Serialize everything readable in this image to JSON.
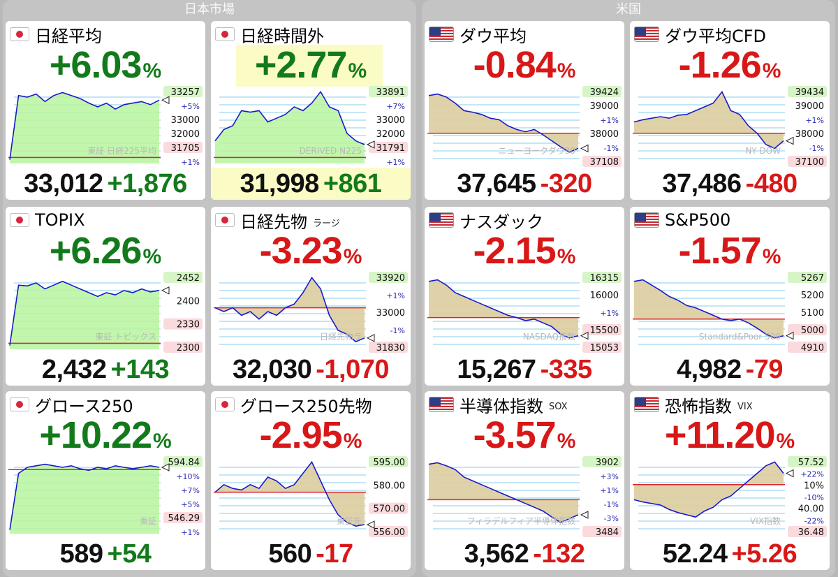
{
  "sections": {
    "japan": "日本市場",
    "us": "米国"
  },
  "colors": {
    "up": "#137a1b",
    "down": "#d81818",
    "fill": "#b9f59f",
    "line": "#1a1ac8",
    "grid": "#9fd8f0",
    "baseline": "#e0242b"
  },
  "cards": [
    {
      "id": "nikkei",
      "flag": "jp",
      "name": "日経平均",
      "sub": "",
      "pct": "+6.03",
      "unit": "%",
      "dir": "up",
      "value": "33,012",
      "change": "+1,876",
      "watermark": "東証 日経225平均",
      "tags": [
        "33257",
        "+5%",
        "33000",
        "32000",
        "31705",
        "+1%"
      ]
    },
    {
      "id": "nikkei-afterhours",
      "flag": "jp",
      "name": "日経時間外",
      "sub": "",
      "pct": "+2.77",
      "unit": "%",
      "dir": "up",
      "value": "31,998",
      "change": "+861",
      "watermark": "DERIVED N225",
      "tags": [
        "33891",
        "+7%",
        "33000",
        "32000",
        "31791",
        "+1%"
      ]
    },
    {
      "id": "dow",
      "flag": "us",
      "name": "ダウ平均",
      "sub": "",
      "pct": "-0.84",
      "unit": "%",
      "dir": "down",
      "value": "37,645",
      "change": "-320",
      "watermark": "ニューヨークダウ30",
      "tags": [
        "39424",
        "39000",
        "+1%",
        "38000",
        "-1%",
        "37108"
      ]
    },
    {
      "id": "dow-cfd",
      "flag": "us",
      "name": "ダウ平均CFD",
      "sub": "",
      "pct": "-1.26",
      "unit": "%",
      "dir": "down",
      "value": "37,486",
      "change": "-480",
      "watermark": "NY DOW",
      "tags": [
        "39434",
        "39000",
        "+1%",
        "38000",
        "-1%",
        "37100"
      ]
    },
    {
      "id": "topix",
      "flag": "jp",
      "name": "TOPIX",
      "sub": "",
      "pct": "+6.26",
      "unit": "%",
      "dir": "up",
      "value": "2,432",
      "change": "+143",
      "watermark": "東証 トピックス",
      "tags": [
        "2452",
        "2400",
        "2330",
        "2300"
      ]
    },
    {
      "id": "nikkei-futures",
      "flag": "jp",
      "name": "日経先物",
      "sub": "ラージ",
      "pct": "-3.23",
      "unit": "%",
      "dir": "down",
      "value": "32,030",
      "change": "-1,070",
      "watermark": "日経先物ラ",
      "tags": [
        "33920",
        "+1%",
        "33000",
        "-1%",
        "31830"
      ]
    },
    {
      "id": "nasdaq",
      "flag": "us",
      "name": "ナスダック",
      "sub": "",
      "pct": "-2.15",
      "unit": "%",
      "dir": "down",
      "value": "15,267",
      "change": "-335",
      "watermark": "NASDAQ指数",
      "tags": [
        "16315",
        "16000",
        "+1%",
        "15500",
        "15053"
      ]
    },
    {
      "id": "sp500",
      "flag": "us",
      "name": "S&P500",
      "sub": "",
      "pct": "-1.57",
      "unit": "%",
      "dir": "down",
      "value": "4,982",
      "change": "-79",
      "watermark": "Standard&Poor 500",
      "tags": [
        "5267",
        "5200",
        "5100",
        "5000",
        "4910"
      ]
    },
    {
      "id": "growth250",
      "flag": "jp",
      "name": "グロース250",
      "sub": "",
      "pct": "+10.22",
      "unit": "%",
      "dir": "up",
      "value": "589",
      "change": "+54",
      "watermark": "東証",
      "tags": [
        "594.84",
        "+10%",
        "+7%",
        "+5%",
        "546.29",
        "+1%"
      ]
    },
    {
      "id": "growth250-futures",
      "flag": "jp",
      "name": "グロース250先物",
      "sub": "",
      "pct": "-2.95",
      "unit": "%",
      "dir": "down",
      "value": "560",
      "change": "-17",
      "watermark": "東証先",
      "tags": [
        "595.00",
        "580.00",
        "570.00",
        "556.00"
      ]
    },
    {
      "id": "sox",
      "flag": "us",
      "name": "半導体指数",
      "sub": "SOX",
      "pct": "-3.57",
      "unit": "%",
      "dir": "down",
      "value": "3,562",
      "change": "-132",
      "watermark": "フィラデルフィア半導体指数",
      "tags": [
        "3902",
        "+3%",
        "+1%",
        "-1%",
        "-3%",
        "3484"
      ]
    },
    {
      "id": "vix",
      "flag": "us",
      "name": "恐怖指数",
      "sub": "VIX",
      "pct": "+11.20",
      "unit": "%",
      "dir": "up-red",
      "value": "52.24",
      "change": "+5.26",
      "watermark": "VIX指数",
      "tags": [
        "57.52",
        "+22%",
        "10%",
        "-10%",
        "40.00",
        "-22%",
        "36.48"
      ]
    }
  ]
}
